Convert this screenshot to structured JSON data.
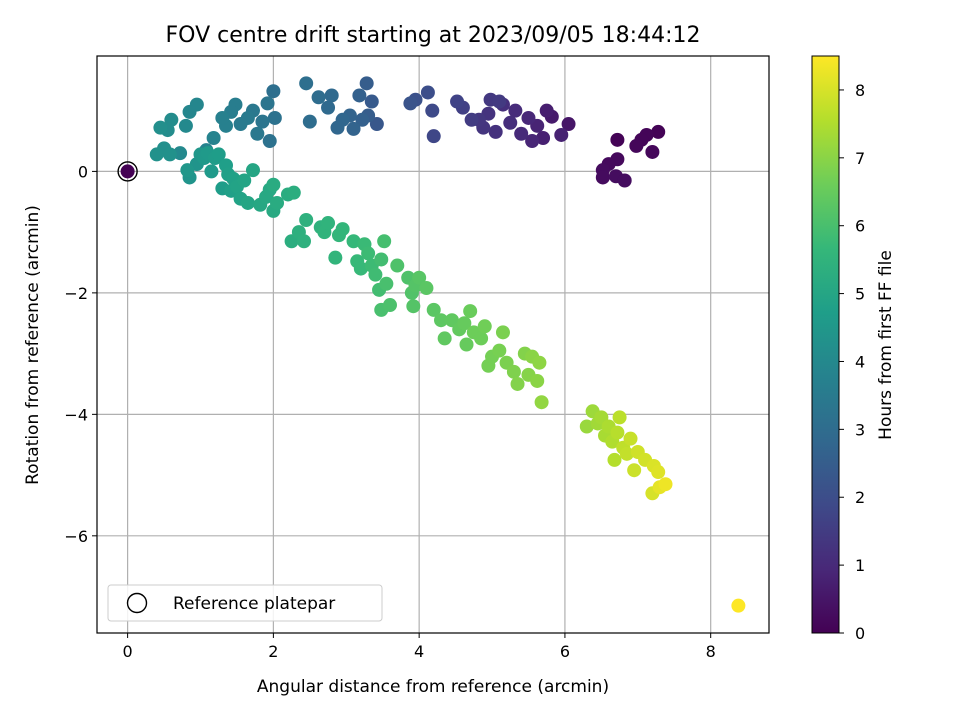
{
  "chart_data": {
    "type": "scatter",
    "title": "FOV centre drift starting at 2023/09/05 18:44:12",
    "xlabel": "Angular distance from reference (arcmin)",
    "ylabel": "Rotation from reference (arcmin)",
    "xlim": [
      -0.42,
      8.8
    ],
    "ylim": [
      -7.6,
      1.9
    ],
    "xticks": [
      0,
      2,
      4,
      6,
      8
    ],
    "yticks": [
      -6,
      -4,
      -2,
      0
    ],
    "grid": true,
    "colorbar": {
      "label": "Hours from first FF file",
      "range": [
        0,
        8.5
      ],
      "ticks": [
        0,
        1,
        2,
        3,
        4,
        5,
        6,
        7,
        8
      ],
      "colormap": "viridis"
    },
    "legend": {
      "entries": [
        "Reference platepar"
      ],
      "position": "lower-left"
    },
    "reference_point": {
      "x": 0,
      "y": 0
    },
    "points": [
      {
        "x": 6.72,
        "y": 0.52,
        "h": 0.05
      },
      {
        "x": 7.28,
        "y": 0.65,
        "h": 0.05
      },
      {
        "x": 7.12,
        "y": 0.6,
        "h": 0.1
      },
      {
        "x": 7.05,
        "y": 0.52,
        "h": 0.1
      },
      {
        "x": 6.98,
        "y": 0.42,
        "h": 0.15
      },
      {
        "x": 7.2,
        "y": 0.32,
        "h": 0.15
      },
      {
        "x": 6.72,
        "y": 0.2,
        "h": 0.2
      },
      {
        "x": 6.6,
        "y": 0.12,
        "h": 0.2
      },
      {
        "x": 6.52,
        "y": 0.02,
        "h": 0.25
      },
      {
        "x": 6.52,
        "y": -0.1,
        "h": 0.25
      },
      {
        "x": 6.7,
        "y": -0.08,
        "h": 0.3
      },
      {
        "x": 6.82,
        "y": -0.15,
        "h": 0.3
      },
      {
        "x": 6.05,
        "y": 0.78,
        "h": 0.5
      },
      {
        "x": 5.82,
        "y": 0.9,
        "h": 0.6
      },
      {
        "x": 5.75,
        "y": 1.0,
        "h": 0.7
      },
      {
        "x": 5.7,
        "y": 0.55,
        "h": 0.75
      },
      {
        "x": 5.95,
        "y": 0.6,
        "h": 0.8
      },
      {
        "x": 5.62,
        "y": 0.75,
        "h": 0.85
      },
      {
        "x": 5.55,
        "y": 0.5,
        "h": 0.9
      },
      {
        "x": 5.5,
        "y": 0.88,
        "h": 0.95
      },
      {
        "x": 5.4,
        "y": 0.62,
        "h": 1.0
      },
      {
        "x": 5.32,
        "y": 1.0,
        "h": 1.05
      },
      {
        "x": 5.25,
        "y": 0.8,
        "h": 1.1
      },
      {
        "x": 5.15,
        "y": 1.1,
        "h": 1.15
      },
      {
        "x": 5.05,
        "y": 0.65,
        "h": 1.2
      },
      {
        "x": 4.95,
        "y": 0.95,
        "h": 1.25
      },
      {
        "x": 4.88,
        "y": 0.72,
        "h": 1.3
      },
      {
        "x": 4.82,
        "y": 0.85,
        "h": 1.35
      },
      {
        "x": 4.98,
        "y": 1.18,
        "h": 1.4
      },
      {
        "x": 5.1,
        "y": 1.15,
        "h": 1.45
      },
      {
        "x": 4.72,
        "y": 0.85,
        "h": 1.5
      },
      {
        "x": 4.6,
        "y": 1.05,
        "h": 1.6
      },
      {
        "x": 4.52,
        "y": 1.15,
        "h": 1.7
      },
      {
        "x": 4.2,
        "y": 0.58,
        "h": 1.8
      },
      {
        "x": 4.18,
        "y": 1.0,
        "h": 1.9
      },
      {
        "x": 4.12,
        "y": 1.3,
        "h": 2.0
      },
      {
        "x": 3.95,
        "y": 1.18,
        "h": 2.1
      },
      {
        "x": 3.88,
        "y": 1.12,
        "h": 2.2
      },
      {
        "x": 3.42,
        "y": 0.78,
        "h": 2.3
      },
      {
        "x": 3.35,
        "y": 1.15,
        "h": 2.4
      },
      {
        "x": 3.3,
        "y": 0.92,
        "h": 2.5
      },
      {
        "x": 3.28,
        "y": 1.45,
        "h": 2.5
      },
      {
        "x": 3.22,
        "y": 0.85,
        "h": 2.6
      },
      {
        "x": 3.18,
        "y": 1.25,
        "h": 2.6
      },
      {
        "x": 3.1,
        "y": 0.7,
        "h": 2.7
      },
      {
        "x": 3.05,
        "y": 0.92,
        "h": 2.7
      },
      {
        "x": 2.95,
        "y": 0.85,
        "h": 2.8
      },
      {
        "x": 2.88,
        "y": 0.72,
        "h": 2.8
      },
      {
        "x": 2.8,
        "y": 1.25,
        "h": 2.9
      },
      {
        "x": 2.75,
        "y": 1.05,
        "h": 2.9
      },
      {
        "x": 2.62,
        "y": 1.22,
        "h": 3.0
      },
      {
        "x": 2.5,
        "y": 0.82,
        "h": 3.0
      },
      {
        "x": 2.45,
        "y": 1.45,
        "h": 3.1
      },
      {
        "x": 2.0,
        "y": 1.32,
        "h": 3.1
      },
      {
        "x": 2.02,
        "y": 0.88,
        "h": 3.2
      },
      {
        "x": 1.95,
        "y": 0.5,
        "h": 3.2
      },
      {
        "x": 1.92,
        "y": 1.12,
        "h": 3.3
      },
      {
        "x": 1.85,
        "y": 0.82,
        "h": 3.3
      },
      {
        "x": 1.78,
        "y": 0.62,
        "h": 3.4
      },
      {
        "x": 1.72,
        "y": 1.0,
        "h": 3.4
      },
      {
        "x": 1.65,
        "y": 0.88,
        "h": 3.5
      },
      {
        "x": 1.55,
        "y": 0.78,
        "h": 3.5
      },
      {
        "x": 1.48,
        "y": 1.1,
        "h": 3.6
      },
      {
        "x": 1.42,
        "y": 0.98,
        "h": 3.6
      },
      {
        "x": 1.35,
        "y": 0.75,
        "h": 3.7
      },
      {
        "x": 1.3,
        "y": 0.88,
        "h": 3.7
      },
      {
        "x": 1.18,
        "y": 0.55,
        "h": 3.8
      },
      {
        "x": 1.08,
        "y": 0.35,
        "h": 3.8
      },
      {
        "x": 0.95,
        "y": 1.1,
        "h": 3.9
      },
      {
        "x": 0.85,
        "y": 0.98,
        "h": 3.9
      },
      {
        "x": 0.8,
        "y": 0.75,
        "h": 4.0
      },
      {
        "x": 0.72,
        "y": 0.3,
        "h": 4.0
      },
      {
        "x": 0.6,
        "y": 0.85,
        "h": 4.1
      },
      {
        "x": 0.55,
        "y": 0.68,
        "h": 4.1
      },
      {
        "x": 0.5,
        "y": 0.38,
        "h": 4.2
      },
      {
        "x": 0.45,
        "y": 0.72,
        "h": 4.2
      },
      {
        "x": 0.4,
        "y": 0.28,
        "h": 4.3
      },
      {
        "x": 0.58,
        "y": 0.28,
        "h": 4.3
      },
      {
        "x": 0.95,
        "y": 0.12,
        "h": 4.4
      },
      {
        "x": 0.85,
        "y": -0.1,
        "h": 4.4
      },
      {
        "x": 0.82,
        "y": 0.02,
        "h": 4.5
      },
      {
        "x": 1.0,
        "y": 0.28,
        "h": 4.5
      },
      {
        "x": 1.05,
        "y": 0.22,
        "h": 4.55
      },
      {
        "x": 1.1,
        "y": 0.3,
        "h": 4.6
      },
      {
        "x": 1.15,
        "y": 0.0,
        "h": 4.6
      },
      {
        "x": 1.2,
        "y": 0.22,
        "h": 4.65
      },
      {
        "x": 1.25,
        "y": 0.28,
        "h": 4.7
      },
      {
        "x": 1.3,
        "y": -0.28,
        "h": 4.7
      },
      {
        "x": 1.35,
        "y": 0.1,
        "h": 4.75
      },
      {
        "x": 1.38,
        "y": -0.05,
        "h": 4.8
      },
      {
        "x": 1.42,
        "y": -0.32,
        "h": 4.8
      },
      {
        "x": 1.45,
        "y": -0.12,
        "h": 4.85
      },
      {
        "x": 1.5,
        "y": -0.25,
        "h": 4.9
      },
      {
        "x": 1.55,
        "y": -0.45,
        "h": 4.9
      },
      {
        "x": 1.6,
        "y": -0.15,
        "h": 4.95
      },
      {
        "x": 1.65,
        "y": -0.52,
        "h": 5.0
      },
      {
        "x": 1.72,
        "y": 0.02,
        "h": 5.0
      },
      {
        "x": 1.82,
        "y": -0.55,
        "h": 5.05
      },
      {
        "x": 1.9,
        "y": -0.42,
        "h": 5.1
      },
      {
        "x": 1.95,
        "y": -0.3,
        "h": 5.1
      },
      {
        "x": 2.0,
        "y": -0.65,
        "h": 5.15
      },
      {
        "x": 2.0,
        "y": -0.22,
        "h": 5.2
      },
      {
        "x": 2.05,
        "y": -0.52,
        "h": 5.2
      },
      {
        "x": 2.2,
        "y": -0.38,
        "h": 5.25
      },
      {
        "x": 2.28,
        "y": -0.35,
        "h": 5.3
      },
      {
        "x": 2.25,
        "y": -1.15,
        "h": 5.3
      },
      {
        "x": 2.35,
        "y": -1.0,
        "h": 5.35
      },
      {
        "x": 2.42,
        "y": -1.15,
        "h": 5.4
      },
      {
        "x": 2.45,
        "y": -0.8,
        "h": 5.4
      },
      {
        "x": 2.65,
        "y": -0.92,
        "h": 5.45
      },
      {
        "x": 2.7,
        "y": -1.0,
        "h": 5.5
      },
      {
        "x": 2.75,
        "y": -0.85,
        "h": 5.5
      },
      {
        "x": 2.85,
        "y": -1.42,
        "h": 5.55
      },
      {
        "x": 2.9,
        "y": -1.05,
        "h": 5.6
      },
      {
        "x": 2.95,
        "y": -0.95,
        "h": 5.6
      },
      {
        "x": 3.1,
        "y": -1.15,
        "h": 5.65
      },
      {
        "x": 3.15,
        "y": -1.48,
        "h": 5.7
      },
      {
        "x": 3.2,
        "y": -1.6,
        "h": 5.7
      },
      {
        "x": 3.25,
        "y": -1.2,
        "h": 5.75
      },
      {
        "x": 3.3,
        "y": -1.35,
        "h": 5.8
      },
      {
        "x": 3.35,
        "y": -1.55,
        "h": 5.8
      },
      {
        "x": 3.4,
        "y": -1.7,
        "h": 5.85
      },
      {
        "x": 3.45,
        "y": -1.95,
        "h": 5.9
      },
      {
        "x": 3.48,
        "y": -1.45,
        "h": 5.9
      },
      {
        "x": 3.52,
        "y": -1.15,
        "h": 5.95
      },
      {
        "x": 3.55,
        "y": -1.85,
        "h": 6.0
      },
      {
        "x": 3.48,
        "y": -2.28,
        "h": 6.0
      },
      {
        "x": 3.6,
        "y": -2.2,
        "h": 6.05
      },
      {
        "x": 3.7,
        "y": -1.55,
        "h": 6.1
      },
      {
        "x": 3.85,
        "y": -1.75,
        "h": 6.1
      },
      {
        "x": 3.9,
        "y": -2.0,
        "h": 6.15
      },
      {
        "x": 3.92,
        "y": -2.22,
        "h": 6.2
      },
      {
        "x": 3.95,
        "y": -1.88,
        "h": 6.2
      },
      {
        "x": 4.0,
        "y": -1.75,
        "h": 6.25
      },
      {
        "x": 4.1,
        "y": -1.92,
        "h": 6.3
      },
      {
        "x": 4.2,
        "y": -2.28,
        "h": 6.3
      },
      {
        "x": 4.3,
        "y": -2.45,
        "h": 6.35
      },
      {
        "x": 4.35,
        "y": -2.75,
        "h": 6.4
      },
      {
        "x": 4.45,
        "y": -2.45,
        "h": 6.4
      },
      {
        "x": 4.55,
        "y": -2.6,
        "h": 6.45
      },
      {
        "x": 4.62,
        "y": -2.5,
        "h": 6.5
      },
      {
        "x": 4.65,
        "y": -2.85,
        "h": 6.5
      },
      {
        "x": 4.7,
        "y": -2.3,
        "h": 6.55
      },
      {
        "x": 4.75,
        "y": -2.65,
        "h": 6.6
      },
      {
        "x": 4.85,
        "y": -2.75,
        "h": 6.6
      },
      {
        "x": 4.9,
        "y": -2.55,
        "h": 6.65
      },
      {
        "x": 4.95,
        "y": -3.2,
        "h": 6.7
      },
      {
        "x": 5.0,
        "y": -3.05,
        "h": 6.7
      },
      {
        "x": 5.1,
        "y": -2.95,
        "h": 6.75
      },
      {
        "x": 5.15,
        "y": -2.65,
        "h": 6.8
      },
      {
        "x": 5.2,
        "y": -3.15,
        "h": 6.8
      },
      {
        "x": 5.3,
        "y": -3.3,
        "h": 6.85
      },
      {
        "x": 5.35,
        "y": -3.5,
        "h": 6.9
      },
      {
        "x": 5.45,
        "y": -3.0,
        "h": 6.9
      },
      {
        "x": 5.5,
        "y": -3.35,
        "h": 6.95
      },
      {
        "x": 5.55,
        "y": -3.05,
        "h": 7.0
      },
      {
        "x": 5.62,
        "y": -3.45,
        "h": 7.0
      },
      {
        "x": 5.65,
        "y": -3.15,
        "h": 7.05
      },
      {
        "x": 5.68,
        "y": -3.8,
        "h": 7.1
      },
      {
        "x": 6.3,
        "y": -4.2,
        "h": 7.2
      },
      {
        "x": 6.38,
        "y": -3.95,
        "h": 7.25
      },
      {
        "x": 6.45,
        "y": -4.15,
        "h": 7.3
      },
      {
        "x": 6.5,
        "y": -4.05,
        "h": 7.35
      },
      {
        "x": 6.55,
        "y": -4.35,
        "h": 7.4
      },
      {
        "x": 6.6,
        "y": -4.2,
        "h": 7.45
      },
      {
        "x": 6.65,
        "y": -4.45,
        "h": 7.5
      },
      {
        "x": 6.68,
        "y": -4.75,
        "h": 7.55
      },
      {
        "x": 6.72,
        "y": -4.3,
        "h": 7.6
      },
      {
        "x": 6.75,
        "y": -4.05,
        "h": 7.65
      },
      {
        "x": 6.8,
        "y": -4.55,
        "h": 7.7
      },
      {
        "x": 6.85,
        "y": -4.65,
        "h": 7.75
      },
      {
        "x": 6.9,
        "y": -4.4,
        "h": 7.8
      },
      {
        "x": 6.95,
        "y": -4.92,
        "h": 7.85
      },
      {
        "x": 7.0,
        "y": -4.62,
        "h": 7.9
      },
      {
        "x": 7.1,
        "y": -4.75,
        "h": 7.95
      },
      {
        "x": 7.2,
        "y": -5.3,
        "h": 8.0
      },
      {
        "x": 7.22,
        "y": -4.85,
        "h": 8.05
      },
      {
        "x": 7.28,
        "y": -4.95,
        "h": 8.1
      },
      {
        "x": 7.3,
        "y": -5.2,
        "h": 8.2
      },
      {
        "x": 7.38,
        "y": -5.15,
        "h": 8.3
      },
      {
        "x": 8.38,
        "y": -7.15,
        "h": 8.5
      }
    ]
  }
}
